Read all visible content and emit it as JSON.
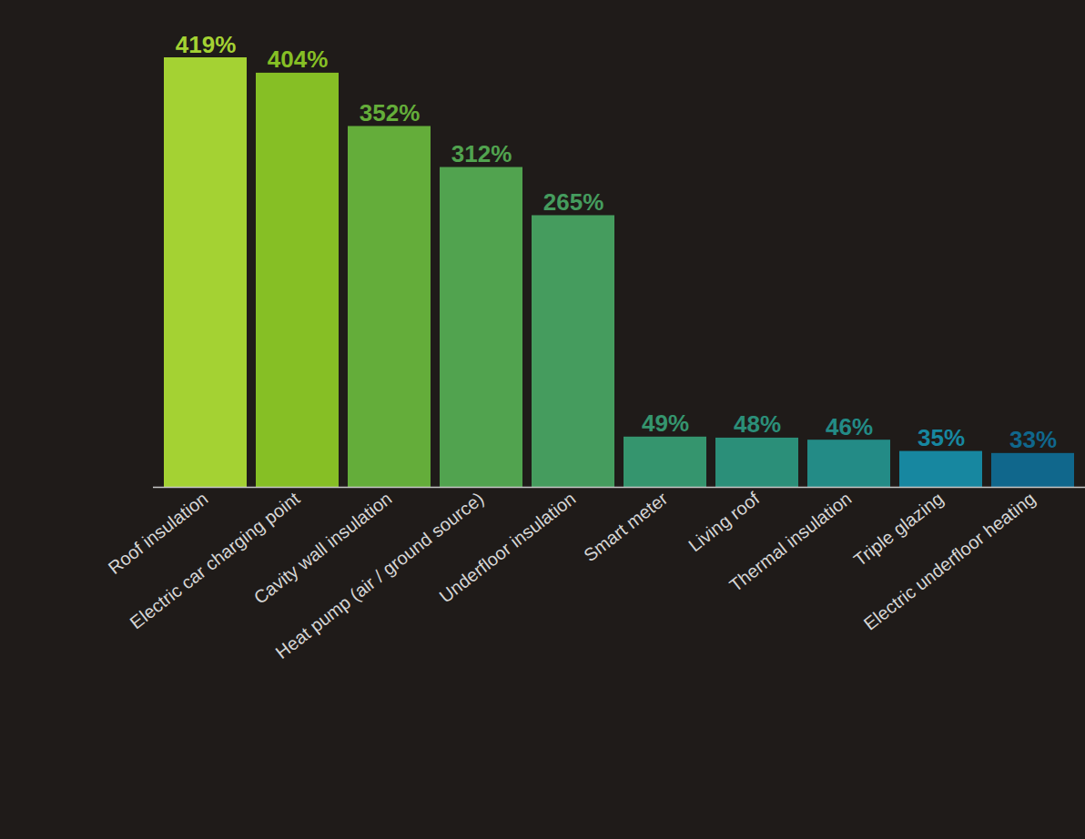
{
  "chart_data": {
    "type": "bar",
    "categories": [
      "Roof insulation",
      "Electric car charging point",
      "Cavity wall insulation",
      "Heat pump (air / ground source)",
      "Underfloor insulation",
      "Smart meter",
      "Living roof",
      "Thermal insulation",
      "Triple glazing",
      "Electric underfloor heating"
    ],
    "values": [
      419,
      404,
      352,
      312,
      265,
      49,
      48,
      46,
      35,
      33
    ],
    "value_labels": [
      "419%",
      "404%",
      "352%",
      "312%",
      "265%",
      "49%",
      "48%",
      "46%",
      "35%",
      "33%"
    ],
    "colors": [
      "#a4d233",
      "#86bf25",
      "#64ad3a",
      "#51a34f",
      "#459c5e",
      "#35956e",
      "#2b8f79",
      "#238b86",
      "#1787a0",
      "#10678c"
    ],
    "data_labels": true,
    "tick_labels": "x",
    "grid": false
  }
}
